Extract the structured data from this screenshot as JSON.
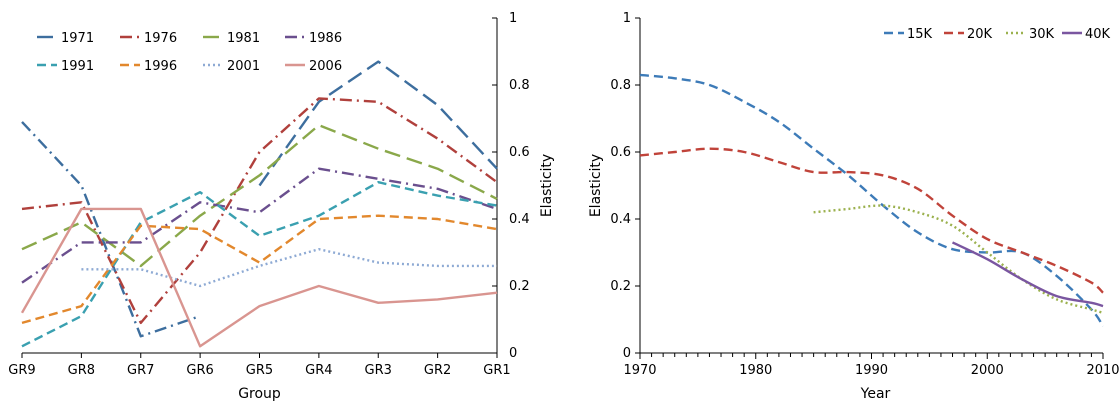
{
  "chart_data": [
    {
      "type": "line",
      "title": "",
      "xlabel": "Group",
      "ylabel": "Elasticity",
      "categories": [
        "GR9",
        "GR8",
        "GR7",
        "GR6",
        "GR5",
        "GR4",
        "GR3",
        "GR2",
        "GR1"
      ],
      "ylim": [
        0,
        1
      ],
      "yticks": [
        "0",
        "0.2",
        "0.4",
        "0.6",
        "0.8",
        "1"
      ],
      "y_axis_side": "right",
      "grid": false,
      "legend_placement": "top-left",
      "series": [
        {
          "name": "1971",
          "color": "#3d6e9e",
          "dash": "longdash",
          "values": [
            null,
            null,
            null,
            null,
            0.5,
            0.75,
            0.87,
            0.74,
            0.55
          ]
        },
        {
          "name": "1976",
          "color": "#b0403c",
          "dash": "dashdot",
          "values": [
            0.43,
            0.45,
            0.09,
            0.3,
            0.6,
            0.76,
            0.75,
            0.64,
            0.51
          ]
        },
        {
          "name": "1981",
          "color": "#8aa84a",
          "dash": "longdash",
          "values": [
            0.31,
            0.39,
            0.26,
            0.41,
            0.53,
            0.68,
            0.61,
            0.55,
            0.46
          ]
        },
        {
          "name": "1986",
          "color": "#6a4f8e",
          "dash": "dashdot",
          "values": [
            0.21,
            0.33,
            0.33,
            0.45,
            0.42,
            0.55,
            0.52,
            0.49,
            0.43
          ]
        },
        {
          "name": "1991",
          "color": "#3aa0b0",
          "dash": "dash",
          "values": [
            0.02,
            0.11,
            0.39,
            0.48,
            0.35,
            0.41,
            0.51,
            0.47,
            0.44
          ]
        },
        {
          "name": "1996",
          "color": "#e2882d",
          "dash": "dash",
          "values": [
            0.09,
            0.14,
            0.38,
            0.37,
            0.27,
            0.4,
            0.41,
            0.4,
            0.37
          ]
        },
        {
          "name": "2001",
          "color": "#8eaad4",
          "dash": "dot",
          "values": [
            null,
            0.25,
            0.25,
            0.2,
            0.26,
            0.31,
            0.27,
            0.26,
            0.26
          ]
        },
        {
          "name": "2006",
          "color": "#d99590",
          "dash": "solid",
          "values": [
            0.12,
            0.43,
            0.43,
            0.02,
            0.14,
            0.2,
            0.15,
            0.16,
            0.18
          ]
        }
      ],
      "extra_segments": [
        {
          "series": "1971",
          "color": "#3d6e9e",
          "dash": "dashdot",
          "values": [
            0.69,
            0.5,
            0.05,
            0.11,
            null,
            null,
            null,
            null,
            null
          ]
        }
      ]
    },
    {
      "type": "line",
      "title": "",
      "xlabel": "Year",
      "ylabel": "Elasticity",
      "xlim": [
        1970,
        2010
      ],
      "xticks": [
        "1970",
        "1980",
        "1990",
        "2000",
        "2010"
      ],
      "ylim": [
        0,
        1
      ],
      "yticks": [
        "0",
        "0.2",
        "0.4",
        "0.6",
        "0.8",
        "1"
      ],
      "y_axis_side": "left",
      "grid": false,
      "legend_placement": "top-right",
      "series": [
        {
          "name": "15K",
          "color": "#3d7bb8",
          "dash": "dash",
          "x": [
            1970,
            1973,
            1976,
            1979,
            1982,
            1985,
            1988,
            1991,
            1994,
            1997,
            2000,
            2003,
            2006,
            2009,
            2010
          ],
          "y": [
            0.83,
            0.82,
            0.8,
            0.75,
            0.69,
            0.61,
            0.53,
            0.44,
            0.36,
            0.31,
            0.3,
            0.3,
            0.23,
            0.13,
            0.08
          ]
        },
        {
          "name": "20K",
          "color": "#c0433a",
          "dash": "dash",
          "x": [
            1970,
            1973,
            1976,
            1979,
            1982,
            1985,
            1988,
            1991,
            1994,
            1997,
            2000,
            2003,
            2006,
            2009,
            2010
          ],
          "y": [
            0.59,
            0.6,
            0.61,
            0.6,
            0.57,
            0.54,
            0.54,
            0.53,
            0.49,
            0.41,
            0.34,
            0.3,
            0.26,
            0.21,
            0.18
          ]
        },
        {
          "name": "30K",
          "color": "#9bb14e",
          "dash": "dot",
          "x": [
            1985,
            1988,
            1991,
            1994,
            1997,
            2000,
            2003,
            2006,
            2009,
            2010
          ],
          "y": [
            0.42,
            0.43,
            0.44,
            0.42,
            0.38,
            0.3,
            0.22,
            0.16,
            0.13,
            0.12
          ]
        },
        {
          "name": "40K",
          "color": "#7a56a0",
          "dash": "solid",
          "x": [
            1997,
            2000,
            2003,
            2006,
            2009,
            2010
          ],
          "y": [
            0.33,
            0.28,
            0.22,
            0.17,
            0.15,
            0.14
          ]
        }
      ]
    }
  ]
}
